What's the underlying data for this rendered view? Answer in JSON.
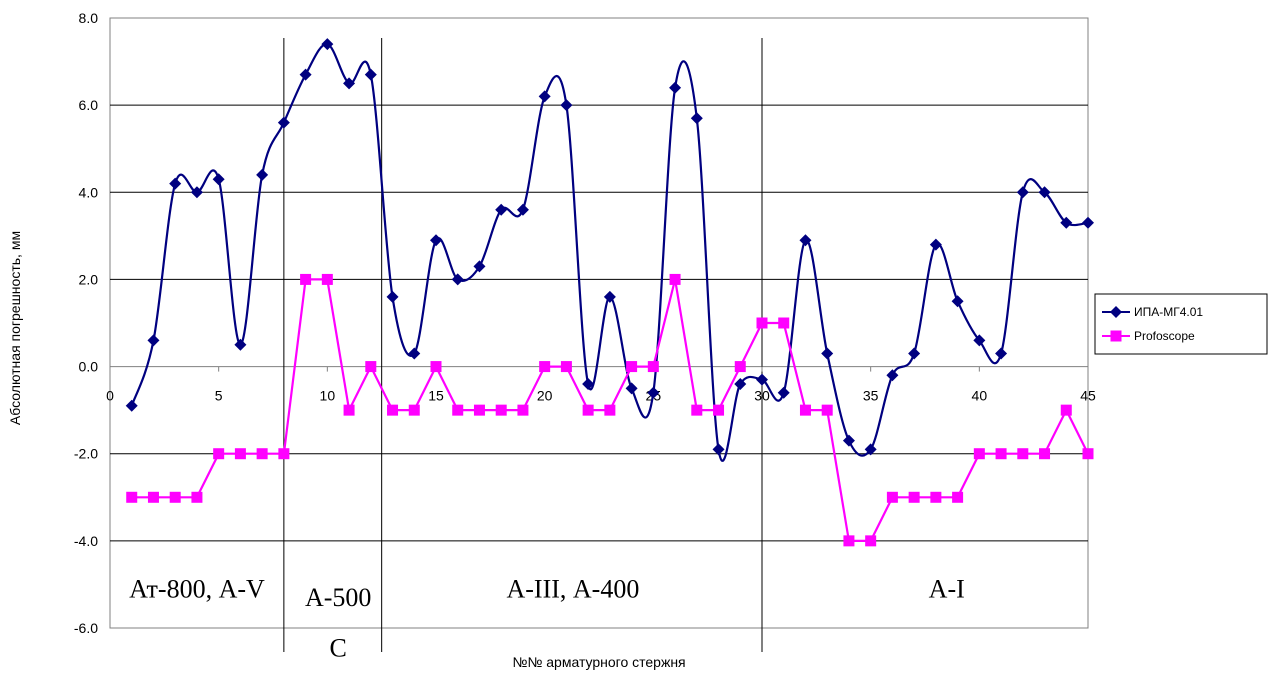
{
  "chart_data": {
    "type": "line",
    "xlabel": "№№ арматурного стержня",
    "ylabel": "Абсолютная  погрешность, мм",
    "xlim": [
      0,
      45
    ],
    "ylim": [
      -6,
      8
    ],
    "x_ticks": [
      "0",
      "5",
      "10",
      "15",
      "20",
      "25",
      "30",
      "35",
      "40",
      "45"
    ],
    "y_ticks": [
      "-6.0",
      "-4.0",
      "-2.0",
      "0.0",
      "2.0",
      "4.0",
      "6.0",
      "8.0"
    ],
    "grid": "horizontal",
    "legend_position": "right",
    "x": [
      1,
      2,
      3,
      4,
      5,
      6,
      7,
      8,
      9,
      10,
      11,
      12,
      13,
      14,
      15,
      16,
      17,
      18,
      19,
      20,
      21,
      22,
      23,
      24,
      25,
      26,
      27,
      28,
      29,
      30,
      31,
      32,
      33,
      34,
      35,
      36,
      37,
      38,
      39,
      40,
      41,
      42,
      43,
      44,
      45
    ],
    "series": [
      {
        "name": "ИПА-МГ4.01",
        "color": "#000080",
        "marker": "diamond",
        "values": [
          -0.9,
          0.6,
          4.2,
          4.0,
          4.3,
          0.5,
          4.4,
          5.6,
          6.7,
          7.4,
          6.5,
          6.7,
          1.6,
          0.3,
          2.9,
          2.0,
          2.3,
          3.6,
          3.6,
          6.2,
          6.0,
          -0.4,
          1.6,
          -0.5,
          -0.6,
          6.4,
          5.7,
          -1.9,
          -0.4,
          -0.3,
          -0.6,
          2.9,
          0.3,
          -1.7,
          -1.9,
          -0.2,
          0.3,
          2.8,
          1.5,
          0.6,
          0.3,
          4.0,
          4.0,
          3.3,
          3.3
        ]
      },
      {
        "name": "Profoscope",
        "color": "#ff00ff",
        "marker": "square",
        "values": [
          -3,
          -3,
          -3,
          -3,
          -2,
          -2,
          -2,
          -2,
          2,
          2,
          -1,
          0,
          -1,
          -1,
          0,
          -1,
          -1,
          -1,
          -1,
          0,
          0,
          -1,
          -1,
          0,
          0,
          2,
          -1,
          -1,
          0,
          1,
          1,
          -1,
          -1,
          -4,
          -4,
          -3,
          -3,
          -3,
          -3,
          -2,
          -2,
          -2,
          -2,
          -1,
          -2
        ]
      }
    ],
    "separators_x": [
      8,
      12.5,
      30
    ],
    "regions": [
      {
        "label": "Ат-800, А-V",
        "x": 4,
        "y": -5.3
      },
      {
        "label": "А-500",
        "x": 10.5,
        "y": -5.5
      },
      {
        "label": "С",
        "x": 10.5,
        "y": -6.65
      },
      {
        "label": "А-III, А-400",
        "x": 21.3,
        "y": -5.3
      },
      {
        "label": "А-I",
        "x": 38.5,
        "y": -5.3
      }
    ]
  }
}
